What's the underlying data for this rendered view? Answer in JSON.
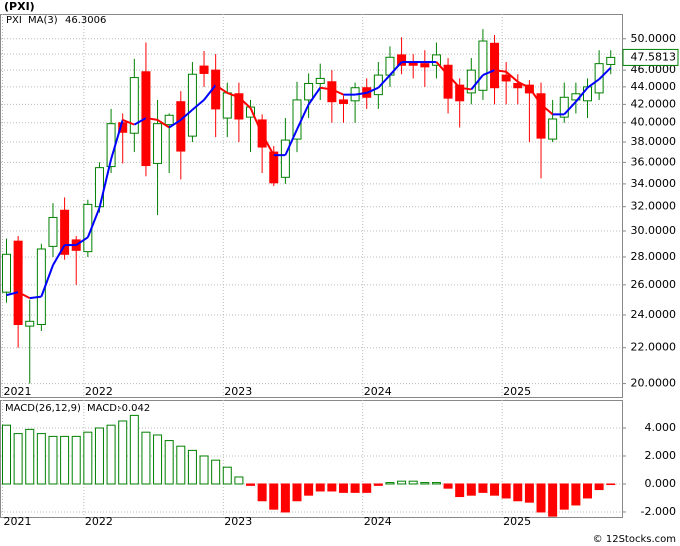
{
  "chart_data": [
    {
      "type": "candlestick",
      "title": "(PXI)",
      "log_scale": true,
      "grid": true,
      "categories": [
        "2021",
        null,
        null,
        null,
        null,
        null,
        null,
        "2022",
        null,
        null,
        null,
        null,
        null,
        null,
        null,
        null,
        null,
        null,
        null,
        "2023",
        null,
        null,
        null,
        null,
        null,
        null,
        null,
        null,
        null,
        null,
        null,
        "2024",
        null,
        null,
        null,
        null,
        null,
        null,
        null,
        null,
        null,
        null,
        null,
        "2025",
        null,
        null,
        null,
        null,
        null,
        null,
        null,
        null,
        null
      ],
      "series": [
        {
          "name": "PXI",
          "up_color": "#008000",
          "down_color": "#ff0000",
          "open": [
            25.5,
            29.2,
            23.3,
            23.4,
            28.8,
            31.7,
            29.3,
            28.4,
            32.0,
            35.6,
            40.0,
            38.9,
            45.8,
            35.9,
            39.8,
            42.3,
            38.6,
            46.5,
            46.0,
            40.5,
            43.2,
            40.6,
            40.3,
            37.0,
            34.6,
            38.3,
            42.5,
            44.4,
            44.6,
            42.5,
            42.4,
            43.9,
            43.1,
            45.4,
            47.9,
            47.0,
            46.8,
            46.6,
            46.6,
            44.2,
            43.3,
            43.6,
            49.4,
            45.4,
            44.4,
            44.2,
            43.2,
            38.3,
            40.6,
            42.5,
            42.4,
            43.3,
            46.7
          ],
          "high": [
            29.4,
            29.6,
            25.0,
            29.0,
            32.3,
            32.8,
            29.6,
            32.6,
            36.0,
            41.5,
            41.0,
            47.4,
            49.5,
            42.5,
            41.0,
            43.5,
            47.0,
            48.4,
            48.0,
            44.5,
            44.5,
            42.5,
            40.9,
            37.6,
            40.5,
            44.6,
            45.6,
            46.8,
            46.0,
            43.0,
            44.5,
            45.0,
            47.0,
            49.0,
            50.2,
            48.0,
            48.5,
            49.5,
            47.5,
            45.0,
            47.5,
            51.3,
            50.5,
            47.0,
            45.5,
            44.8,
            44.5,
            42.5,
            44.5,
            44.5,
            45.0,
            48.5,
            48.5
          ],
          "low": [
            24.8,
            22.0,
            20.0,
            23.0,
            28.0,
            27.8,
            26.0,
            28.0,
            31.5,
            35.0,
            35.9,
            37.0,
            34.7,
            31.3,
            35.0,
            34.4,
            38.0,
            44.0,
            38.5,
            38.5,
            38.0,
            37.0,
            35.0,
            33.8,
            34.0,
            37.0,
            40.5,
            42.5,
            40.0,
            40.0,
            40.0,
            41.5,
            41.5,
            44.0,
            45.5,
            45.0,
            44.0,
            45.0,
            41.0,
            39.5,
            42.0,
            42.5,
            42.0,
            42.0,
            42.0,
            38.0,
            34.5,
            38.0,
            40.0,
            41.0,
            40.5,
            42.5,
            45.5
          ],
          "close": [
            28.2,
            23.4,
            23.6,
            28.6,
            31.1,
            28.2,
            28.5,
            32.2,
            35.5,
            39.9,
            39.0,
            45.1,
            35.7,
            39.9,
            40.8,
            37.1,
            45.5,
            45.6,
            41.5,
            43.3,
            40.4,
            41.7,
            37.5,
            34.1,
            38.2,
            42.5,
            44.4,
            45.0,
            42.3,
            42.1,
            43.9,
            42.8,
            45.4,
            47.6,
            46.6,
            46.6,
            46.4,
            47.9,
            42.7,
            42.4,
            46.0,
            49.7,
            43.9,
            44.7,
            43.9,
            43.3,
            38.4,
            40.4,
            42.8,
            43.2,
            44.0,
            46.8,
            47.5813
          ]
        },
        {
          "name": "MA(3)",
          "color": "#0000ff",
          "down_color": "#ff0000",
          "values": [
            25.3,
            25.5,
            25.1,
            25.2,
            27.4,
            28.9,
            28.9,
            29.5,
            31.9,
            36.3,
            40.3,
            39.8,
            40.5,
            40.3,
            39.5,
            40.3,
            41.4,
            42.5,
            44.2,
            43.3,
            42.8,
            41.6,
            38.8,
            36.7,
            36.7,
            39.3,
            42.0,
            43.9,
            43.7,
            43.1,
            43.1,
            43.3,
            43.9,
            45.4,
            47.0,
            47.0,
            47.0,
            47.0,
            45.4,
            43.9,
            43.7,
            45.4,
            46.0,
            45.8,
            44.6,
            43.9,
            42.0,
            40.9,
            40.9,
            42.3,
            43.9,
            44.9,
            46.3006
          ]
        }
      ],
      "ylim": [
        19.3,
        53.4
      ],
      "yticks": [
        {
          "value": 20,
          "label": "20.0000"
        },
        {
          "value": 22,
          "label": "22.0000"
        },
        {
          "value": 24,
          "label": "24.0000"
        },
        {
          "value": 26,
          "label": "26.0000"
        },
        {
          "value": 28,
          "label": "28.0000"
        },
        {
          "value": 30,
          "label": "30.0000"
        },
        {
          "value": 32,
          "label": "32.0000"
        },
        {
          "value": 34,
          "label": "34.0000"
        },
        {
          "value": 36,
          "label": "36.0000"
        },
        {
          "value": 38,
          "label": "38.0000"
        },
        {
          "value": 40,
          "label": "40.0000"
        },
        {
          "value": 42,
          "label": "42.0000"
        },
        {
          "value": 44,
          "label": "44.0000"
        },
        {
          "value": 46,
          "label": "46.0000"
        },
        {
          "value": 48,
          "label": "48.0000"
        },
        {
          "value": 50,
          "label": "50.0000"
        }
      ]
    },
    {
      "type": "bar",
      "title": "MACD(26,12,9)",
      "grid": true,
      "categories": [
        "2021",
        null,
        null,
        null,
        null,
        null,
        null,
        "2022",
        null,
        null,
        null,
        null,
        null,
        null,
        null,
        null,
        null,
        null,
        null,
        "2023",
        null,
        null,
        null,
        null,
        null,
        null,
        null,
        null,
        null,
        null,
        null,
        "2024",
        null,
        null,
        null,
        null,
        null,
        null,
        null,
        null,
        null,
        null,
        null,
        "2025",
        null,
        null,
        null,
        null,
        null,
        null,
        null,
        null,
        null
      ],
      "series": [
        {
          "name": "MACD:",
          "color": "#0000ff",
          "up_color": "#008000",
          "down_color": "#ff0000",
          "values": [
            4.2,
            3.6,
            3.9,
            3.6,
            3.4,
            3.4,
            3.4,
            3.7,
            4.0,
            4.2,
            4.5,
            4.9,
            3.7,
            3.5,
            3.1,
            2.7,
            2.4,
            2.0,
            1.7,
            1.2,
            0.5,
            -0.1,
            -1.2,
            -1.8,
            -2.0,
            -1.2,
            -0.8,
            -0.5,
            -0.5,
            -0.6,
            -0.6,
            -0.6,
            -0.1,
            0.1,
            0.2,
            0.2,
            0.1,
            0.1,
            -0.3,
            -0.9,
            -0.8,
            -0.6,
            -0.8,
            -1.0,
            -1.2,
            -1.3,
            -2.0,
            -2.3,
            -1.8,
            -1.5,
            -1.0,
            -0.4,
            -0.042
          ]
        }
      ],
      "ylim": [
        -2.36,
        6.0
      ],
      "yticks": [
        {
          "value": -2,
          "label": "-2.000"
        },
        {
          "value": 0,
          "label": "0.000"
        },
        {
          "value": 2,
          "label": "2.000"
        },
        {
          "value": 4,
          "label": "4.000"
        }
      ]
    }
  ],
  "watermark": "© 12Stocks.com"
}
